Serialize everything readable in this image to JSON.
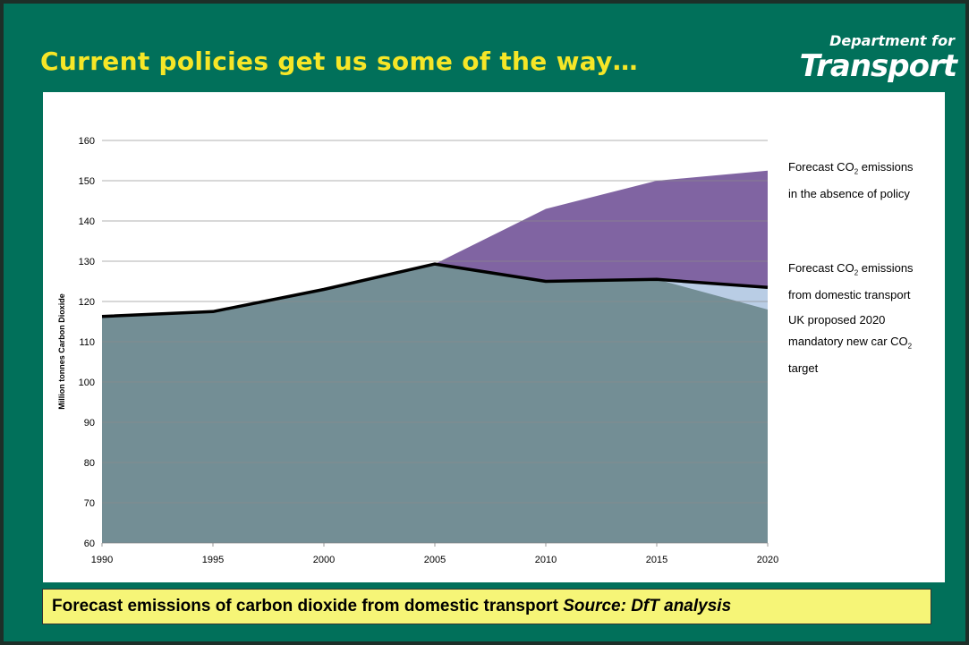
{
  "slide": {
    "title": "Current policies get us some of the way…",
    "logo": {
      "line1": "Department for",
      "line2": "Transport"
    },
    "caption": {
      "text": "Forecast emissions of carbon dioxide from domestic transport",
      "source": "Source: DfT analysis"
    },
    "colors": {
      "background": "#01705a",
      "title": "#f6e627",
      "caption_bg": "#f6f577"
    }
  },
  "chart_data": {
    "type": "area",
    "title": "",
    "ylabel": "Million tonnes Carbon Dioxide",
    "xlabel": "",
    "x": [
      1990,
      1995,
      2000,
      2005,
      2010,
      2015,
      2020
    ],
    "ylim": [
      60,
      160
    ],
    "yticks": [
      60,
      70,
      80,
      90,
      100,
      110,
      120,
      130,
      140,
      150,
      160
    ],
    "grid": true,
    "series": [
      {
        "name": "Forecast CO2 emissions in the absence of policy",
        "kind": "area",
        "color": "#8064a2",
        "values": [
          116.3,
          117.5,
          123,
          129.3,
          143,
          150,
          152.5
        ]
      },
      {
        "name": "UK proposed 2020 mandatory new car CO2 target",
        "kind": "area",
        "color": "#b9cde5",
        "values": [
          116.3,
          117.5,
          123,
          129.3,
          125,
          125.5,
          123.5
        ]
      },
      {
        "name": "",
        "kind": "area",
        "color": "#738e95",
        "values": [
          116.3,
          117.5,
          123,
          129.3,
          125,
          125.5,
          118
        ]
      },
      {
        "name": "Forecast CO2 emissions from domestic transport",
        "kind": "line",
        "color": "#000000",
        "values": [
          116.3,
          117.5,
          123,
          129.3,
          125,
          125.5,
          123.5
        ]
      }
    ],
    "annotations": {
      "absence": {
        "pre": "Forecast CO",
        "sub": "2",
        "post": " emissions",
        "line2": "in the absence of policy"
      },
      "domestic": {
        "pre": "Forecast CO",
        "sub": "2",
        "post": " emissions",
        "line2": "from domestic transport"
      },
      "target": {
        "line1": "UK proposed 2020",
        "pre": "mandatory new car CO",
        "sub": "2",
        "line3": "target"
      }
    }
  }
}
